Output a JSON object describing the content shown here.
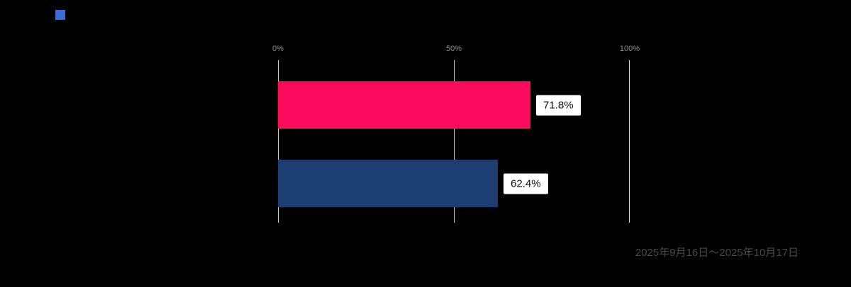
{
  "legend": {
    "marker_color": "#3B6CD8"
  },
  "chart_data": {
    "type": "bar",
    "orientation": "horizontal",
    "title": "",
    "xlabel": "",
    "ylabel": "",
    "xlim": [
      0,
      100
    ],
    "x_ticks": [
      "0%",
      "50%",
      "100%"
    ],
    "grid": true,
    "values": [
      71.8,
      62.4
    ],
    "value_labels": [
      "71.8%",
      "62.4%"
    ],
    "bar_colors": [
      "#FB0A5D",
      "#1C3E70"
    ],
    "footnote": "2025年9月16日～2025年10月17日"
  }
}
